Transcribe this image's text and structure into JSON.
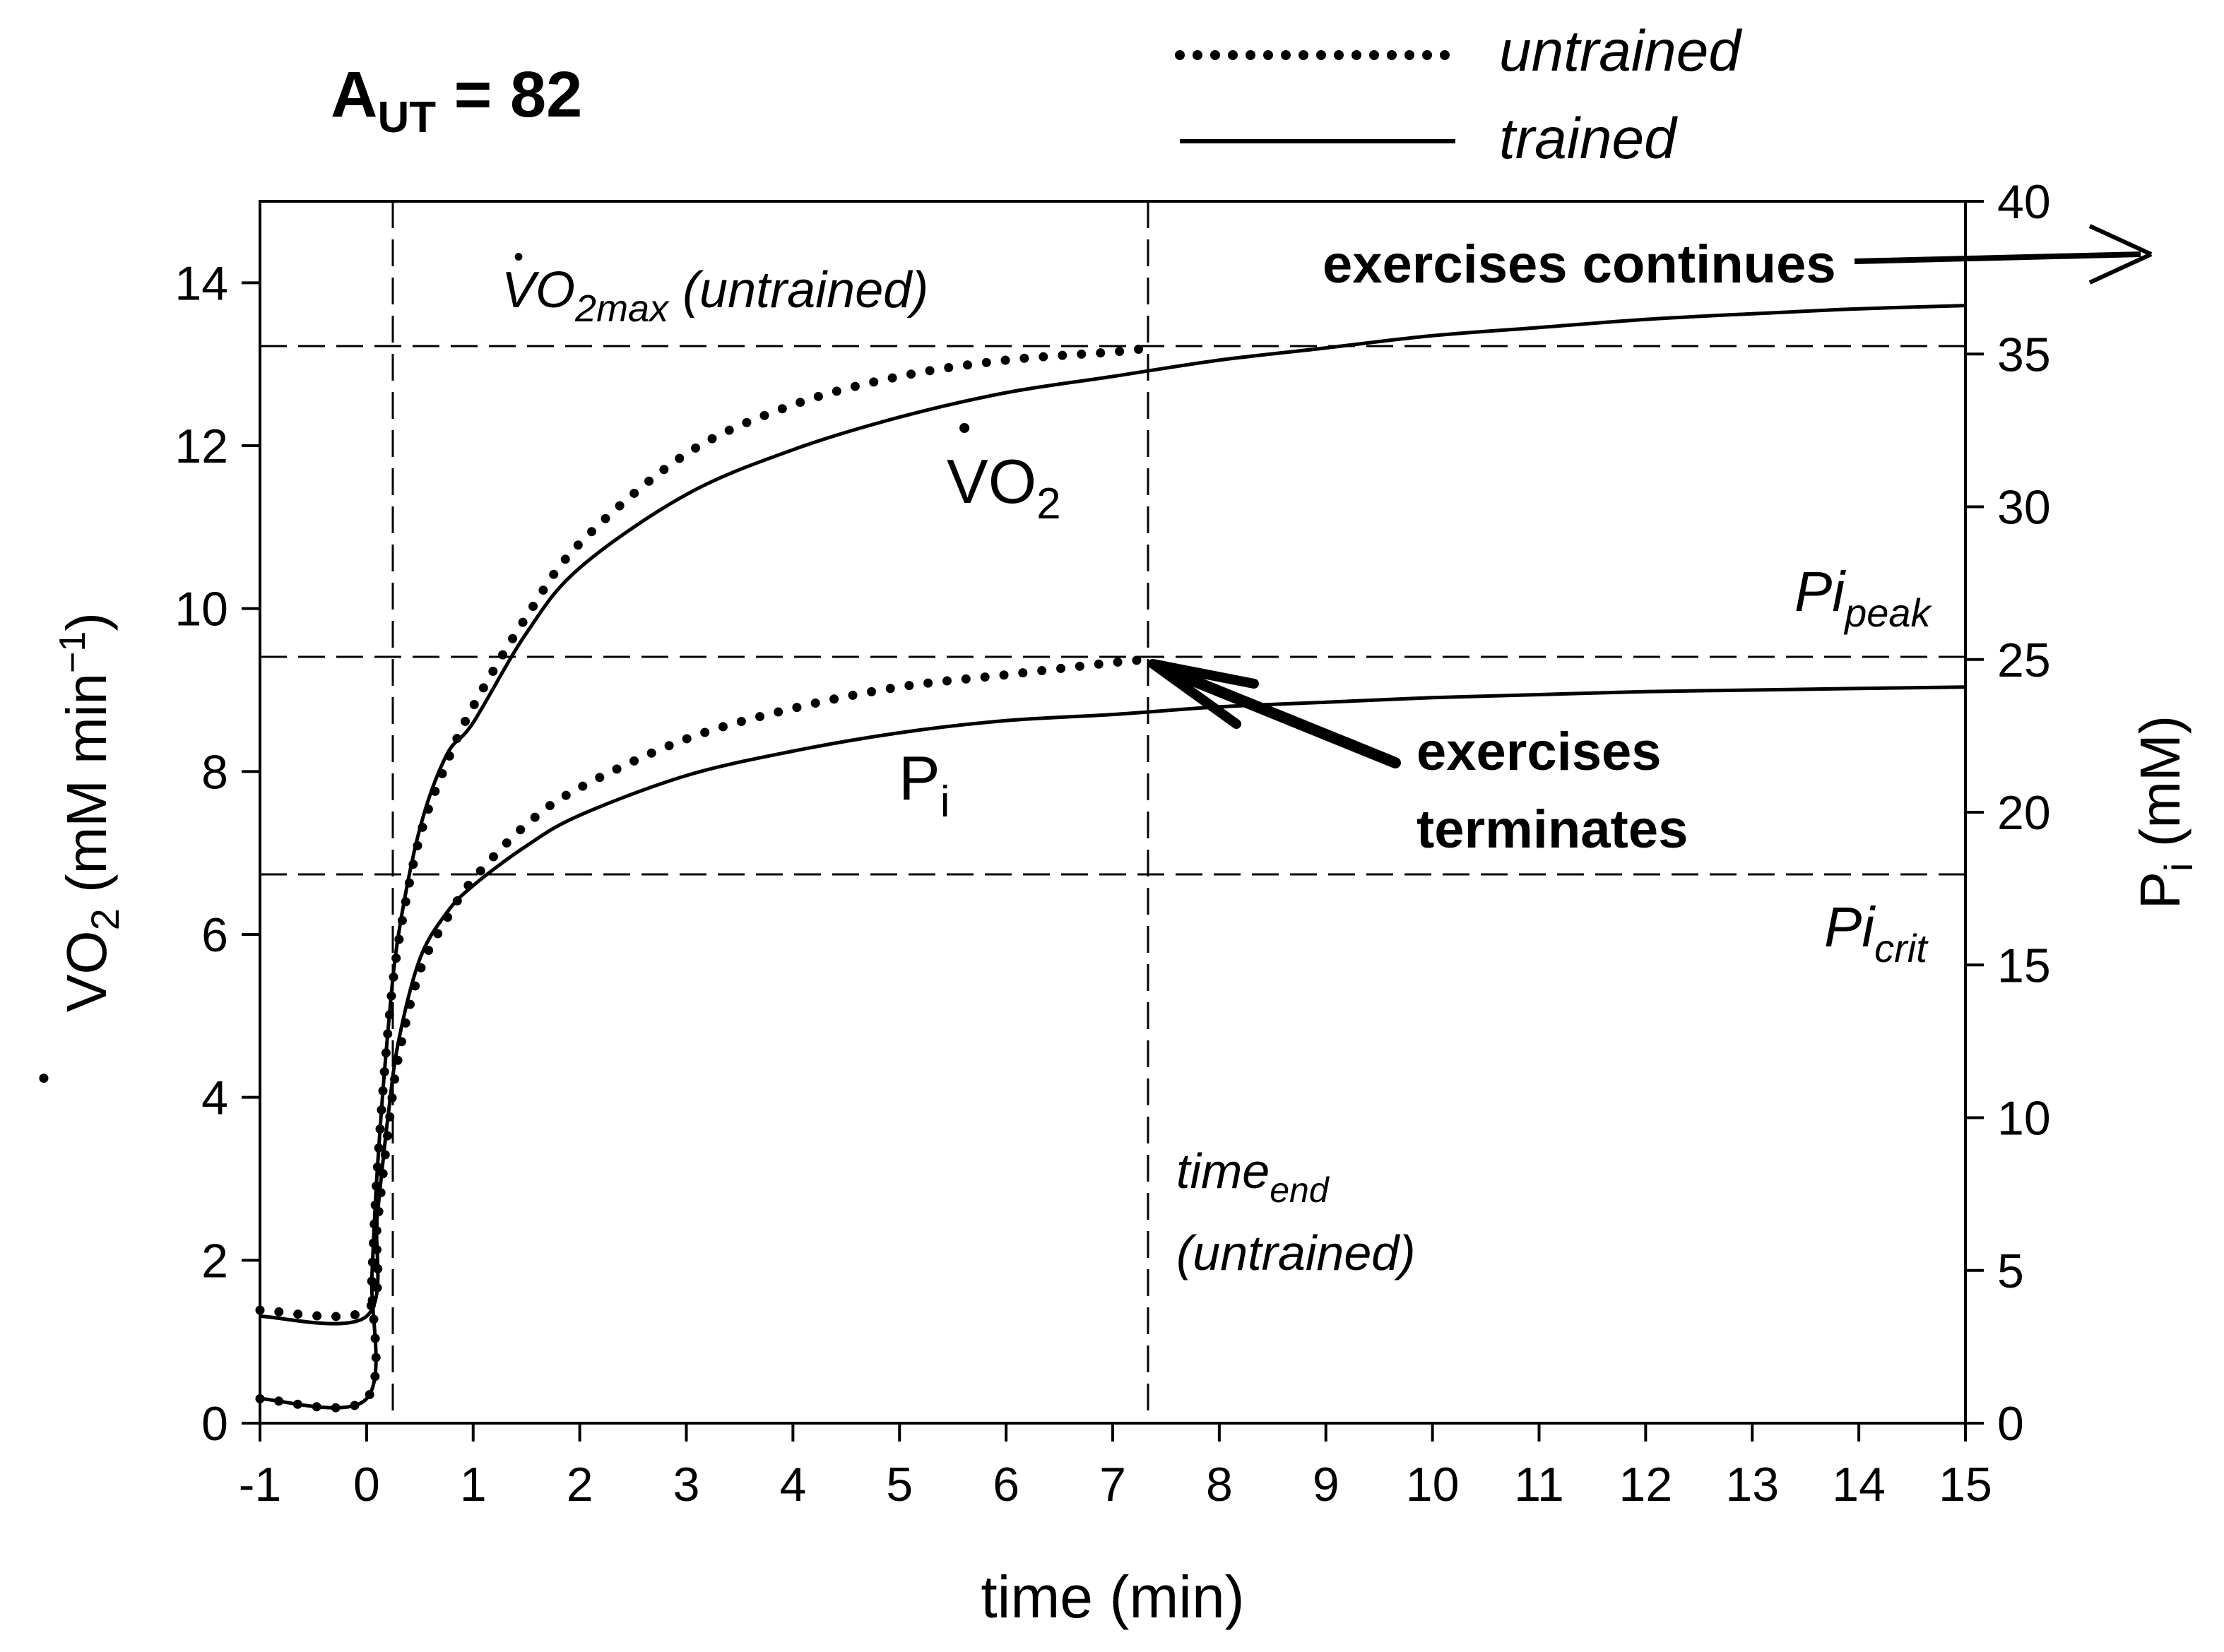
{
  "chart_data": {
    "type": "line",
    "title": "A_UT = 82",
    "title_parts": {
      "base": "A",
      "sub": "UT",
      "rest": " = 82"
    },
    "xlabel": "time (min)",
    "ylabel_left": {
      "dot": "•",
      "base": "VO",
      "sub": "2",
      "rest": " (mM min",
      "sup": "−1",
      "close": ")"
    },
    "ylabel_right": {
      "base": "P",
      "sub": "i",
      "rest": " (mM)"
    },
    "xlim": [
      -1,
      15
    ],
    "ylim_left": [
      0,
      15
    ],
    "ylim_right": [
      0,
      40
    ],
    "x_ticks": [
      -1,
      0,
      1,
      2,
      3,
      4,
      5,
      6,
      7,
      8,
      9,
      10,
      11,
      12,
      13,
      14,
      15
    ],
    "y_ticks_left": [
      0,
      2,
      4,
      6,
      8,
      10,
      12,
      14
    ],
    "y_ticks_right": [
      0,
      5,
      10,
      15,
      20,
      25,
      30,
      35,
      40
    ],
    "legend": {
      "position": "top-right",
      "entries": [
        {
          "label": "untrained",
          "style": "dotted"
        },
        {
          "label": "trained",
          "style": "solid"
        }
      ]
    },
    "reference_lines": {
      "vo2max_untrained": 13.2,
      "pi_peak": 25,
      "pi_crit": 18,
      "exercise_onset_time": 0.25,
      "time_end_untrained": 7.33
    },
    "annotations": {
      "vo2max": {
        "dot": "•",
        "base": "VO",
        "sub": "2max",
        "rest": " (untrained)"
      },
      "vo2_curve": {
        "dot": "•",
        "base": "VO",
        "sub": "2"
      },
      "pi_curve": {
        "base": "P",
        "sub": "i"
      },
      "pi_peak": {
        "base": "Pi",
        "sub": "peak"
      },
      "pi_crit": {
        "base": "Pi",
        "sub": "crit"
      },
      "time_end": {
        "base": "time",
        "sub": "end",
        "line2": "(untrained)"
      },
      "exercises_continues": "exercises continues",
      "exercises_terminates": [
        "exercises",
        "terminates"
      ]
    },
    "series": [
      {
        "name": "VO2 untrained",
        "axis": "left",
        "style": "dotted",
        "x": [
          -1,
          0,
          0.05,
          0.1,
          0.2,
          0.3,
          0.5,
          0.75,
          1,
          1.5,
          2,
          3,
          4,
          5,
          6,
          7,
          7.33
        ],
        "y": [
          0.3,
          0.3,
          1.8,
          3.1,
          4.8,
          5.9,
          7.2,
          8.1,
          8.8,
          9.9,
          10.8,
          11.9,
          12.5,
          12.85,
          13.05,
          13.15,
          13.2
        ]
      },
      {
        "name": "VO2 trained",
        "axis": "left",
        "style": "solid",
        "x": [
          -1,
          0,
          0.05,
          0.1,
          0.2,
          0.3,
          0.5,
          0.75,
          1,
          1.5,
          2,
          3,
          4,
          5,
          6,
          7,
          8,
          9,
          10,
          11,
          12,
          13,
          14,
          15
        ],
        "y": [
          0.3,
          0.3,
          1.8,
          3.1,
          4.8,
          6.0,
          7.3,
          8.2,
          8.6,
          9.7,
          10.5,
          11.4,
          11.95,
          12.35,
          12.65,
          12.85,
          13.05,
          13.2,
          13.35,
          13.45,
          13.55,
          13.62,
          13.68,
          13.72
        ]
      },
      {
        "name": "Pi untrained",
        "axis": "right",
        "style": "dotted",
        "x": [
          -1,
          0,
          0.1,
          0.2,
          0.3,
          0.5,
          0.75,
          1,
          1.5,
          2,
          3,
          4,
          5,
          6,
          7,
          7.33
        ],
        "y": [
          3.7,
          3.7,
          6.5,
          9.5,
          12.0,
          14.8,
          16.5,
          17.8,
          19.6,
          20.8,
          22.4,
          23.4,
          24.1,
          24.5,
          24.9,
          25.0
        ]
      },
      {
        "name": "Pi trained",
        "axis": "right",
        "style": "solid",
        "x": [
          -1,
          0,
          0.1,
          0.2,
          0.3,
          0.5,
          0.75,
          1,
          1.5,
          2,
          3,
          4,
          5,
          6,
          7,
          8,
          9,
          10,
          11,
          12,
          13,
          14,
          15
        ],
        "y": [
          3.5,
          3.5,
          6.8,
          10.0,
          12.5,
          15.2,
          16.7,
          17.6,
          18.9,
          19.9,
          21.2,
          22.0,
          22.6,
          23.0,
          23.2,
          23.45,
          23.6,
          23.75,
          23.85,
          23.95,
          24.0,
          24.05,
          24.1
        ]
      }
    ]
  }
}
